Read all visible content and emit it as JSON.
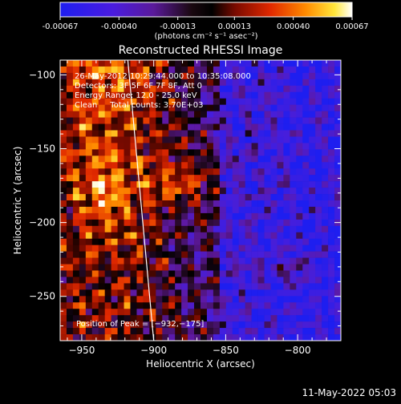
{
  "colorbar": {
    "ticks": [
      "-0.00067",
      "-0.00040",
      "-0.00013",
      "0.00013",
      "0.00040",
      "0.00067"
    ],
    "tick_values": [
      -0.00067,
      -0.0004,
      -0.00013,
      0.00013,
      0.0004,
      0.00067
    ],
    "range": [
      -0.00067,
      0.00067
    ],
    "unit_label": "(photons cm⁻² s⁻¹ asec⁻²)"
  },
  "chart_data": {
    "type": "heatmap",
    "title": "Reconstructed RHESSI Image",
    "xlabel": "Heliocentric X (arcsec)",
    "ylabel": "Heliocentric Y (arcsec)",
    "xlim": [
      -965,
      -770
    ],
    "ylim": [
      -280,
      -90
    ],
    "xticks": [
      -950,
      -900,
      -850,
      -800
    ],
    "yticks": [
      -100,
      -150,
      -200,
      -250
    ],
    "xtick_labels": [
      "−950",
      "−900",
      "−850",
      "−800"
    ],
    "ytick_labels": [
      "−100",
      "−150",
      "−200",
      "−250"
    ],
    "annotations": [
      "26-May-2012 10:29:44.000 to 10:35:08.000",
      "Detectors: 3F 5F 6F 7F 8F, Att 0",
      "Energy Range: 12.0 - 25.0 keV",
      "Clean     Total counts: 3.70E+03"
    ],
    "peak_label": "Position of Peak = [−932,−175]",
    "peak": [
      -932,
      -175
    ],
    "colormap": "blue-purple-black-red-yellow-white",
    "limb_line": [
      [
        -918,
        -90
      ],
      [
        -900,
        -280
      ]
    ],
    "grid": false
  },
  "footer": {
    "date": "11-May-2022 05:03"
  }
}
